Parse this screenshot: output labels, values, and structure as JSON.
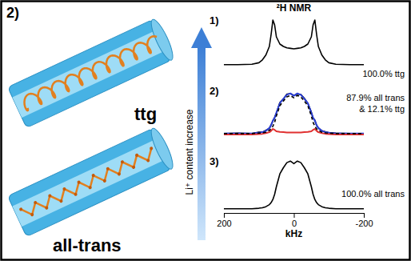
{
  "panel_label": "2)",
  "illustration_labels": [
    "ttg",
    "all-trans"
  ],
  "arrow_label": "Li⁺ content increase",
  "chart_data": [
    {
      "type": "line",
      "title": "²H NMR",
      "annotations": [
        "1)",
        "100.0% ttg"
      ],
      "x": [
        200,
        160,
        120,
        100,
        90,
        80,
        70,
        65,
        60,
        55,
        50,
        40,
        30,
        20,
        10,
        0,
        -10,
        -20,
        -30,
        -40,
        -50,
        -55,
        -60,
        -65,
        -70,
        -80,
        -90,
        -100,
        -120,
        -160,
        -200
      ],
      "xlim": [
        200,
        -200
      ],
      "ylim": [
        0,
        1
      ],
      "tick_labels": false,
      "series": [
        {
          "color": "#000000",
          "line_style": "solid",
          "values": [
            0.02,
            0.02,
            0.03,
            0.06,
            0.12,
            0.22,
            0.4,
            0.65,
            0.95,
            0.85,
            0.6,
            0.45,
            0.4,
            0.37,
            0.36,
            0.35,
            0.36,
            0.37,
            0.4,
            0.45,
            0.6,
            0.85,
            0.95,
            0.65,
            0.4,
            0.22,
            0.12,
            0.06,
            0.03,
            0.02,
            0.02
          ]
        }
      ]
    },
    {
      "type": "line",
      "annotations": [
        "2)",
        "87.9% all trans & 12.1% ttg"
      ],
      "x": [
        200,
        160,
        120,
        100,
        90,
        80,
        70,
        65,
        60,
        55,
        50,
        40,
        30,
        20,
        10,
        0,
        -10,
        -20,
        -30,
        -40,
        -50,
        -55,
        -60,
        -65,
        -70,
        -80,
        -90,
        -100,
        -120,
        -160,
        -200
      ],
      "xlim": [
        200,
        -200
      ],
      "ylim": [
        0,
        1
      ],
      "tick_labels": false,
      "series": [
        {
          "color": "#000000",
          "line_style": "solid",
          "values": [
            0.02,
            0.03,
            0.02,
            0.05,
            0.05,
            0.09,
            0.13,
            0.21,
            0.29,
            0.37,
            0.46,
            0.69,
            0.76,
            0.87,
            0.88,
            0.84,
            0.87,
            0.86,
            0.78,
            0.67,
            0.48,
            0.35,
            0.31,
            0.2,
            0.14,
            0.08,
            0.06,
            0.04,
            0.03,
            0.02,
            0.02
          ]
        },
        {
          "color": "#2b3fd6",
          "line_style": "solid",
          "values": [
            0.02,
            0.02,
            0.02,
            0.04,
            0.05,
            0.08,
            0.14,
            0.2,
            0.3,
            0.36,
            0.47,
            0.675,
            0.77,
            0.855,
            0.885,
            0.835,
            0.885,
            0.855,
            0.77,
            0.675,
            0.47,
            0.36,
            0.3,
            0.2,
            0.14,
            0.08,
            0.05,
            0.04,
            0.02,
            0.02,
            0.02
          ]
        },
        {
          "color": "#e03030",
          "line_style": "solid",
          "values": [
            0.0,
            0.0,
            0.0,
            0.01,
            0.015,
            0.03,
            0.05,
            0.08,
            0.12,
            0.1,
            0.07,
            0.055,
            0.05,
            0.045,
            0.045,
            0.045,
            0.045,
            0.045,
            0.05,
            0.055,
            0.07,
            0.1,
            0.12,
            0.08,
            0.05,
            0.03,
            0.015,
            0.01,
            0.0,
            0.0,
            0.0
          ]
        },
        {
          "color": "#000000",
          "line_style": "dashed",
          "values": [
            0.02,
            0.02,
            0.02,
            0.03,
            0.035,
            0.05,
            0.09,
            0.12,
            0.18,
            0.26,
            0.4,
            0.62,
            0.72,
            0.81,
            0.84,
            0.79,
            0.84,
            0.81,
            0.72,
            0.62,
            0.4,
            0.26,
            0.18,
            0.12,
            0.09,
            0.05,
            0.035,
            0.03,
            0.02,
            0.02,
            0.02
          ]
        }
      ]
    },
    {
      "type": "line",
      "annotations": [
        "3)",
        "100.0% all trans"
      ],
      "xlabel": "kHz",
      "x": [
        200,
        160,
        120,
        100,
        90,
        80,
        70,
        65,
        60,
        55,
        50,
        40,
        30,
        20,
        10,
        0,
        -10,
        -20,
        -30,
        -40,
        -50,
        -55,
        -60,
        -65,
        -70,
        -80,
        -90,
        -100,
        -120,
        -160,
        -200
      ],
      "xlim": [
        200,
        -200
      ],
      "xticks": [
        200,
        0,
        -200
      ],
      "ylim": [
        0,
        1
      ],
      "tick_labels": "x",
      "series": [
        {
          "color": "#000000",
          "line_style": "solid",
          "values": [
            0.02,
            0.02,
            0.02,
            0.03,
            0.04,
            0.06,
            0.1,
            0.14,
            0.2,
            0.3,
            0.45,
            0.7,
            0.82,
            0.92,
            0.95,
            0.9,
            0.95,
            0.92,
            0.82,
            0.7,
            0.45,
            0.3,
            0.2,
            0.14,
            0.1,
            0.06,
            0.04,
            0.03,
            0.02,
            0.02,
            0.02
          ]
        }
      ]
    }
  ]
}
